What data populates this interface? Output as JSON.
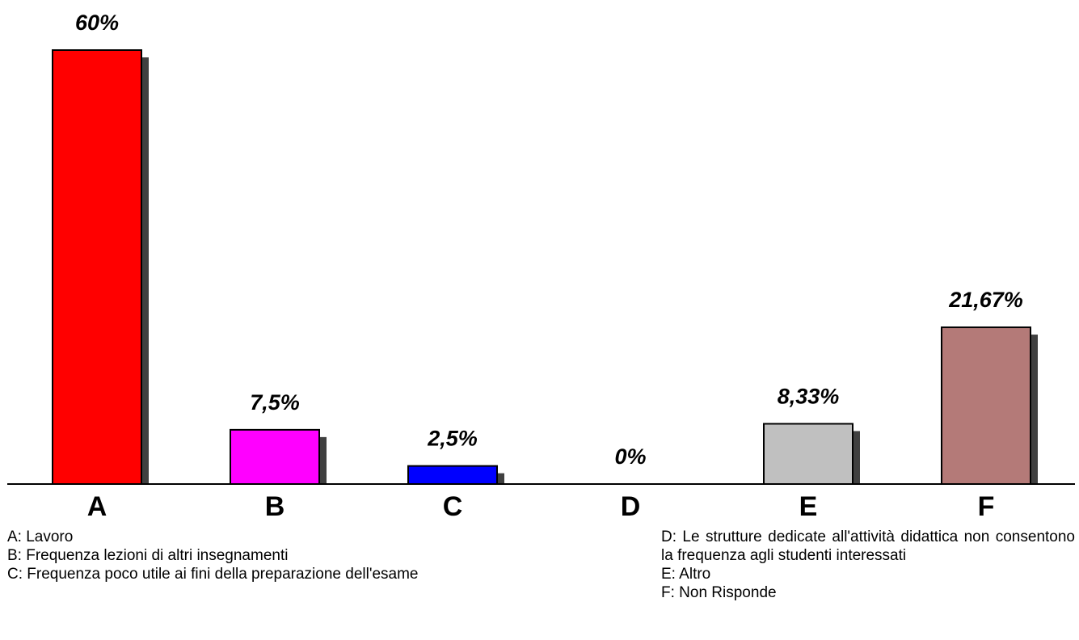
{
  "chart_data": {
    "type": "bar",
    "categories": [
      "A",
      "B",
      "C",
      "D",
      "E",
      "F"
    ],
    "values": [
      60,
      7.5,
      2.5,
      0,
      8.33,
      21.67
    ],
    "value_labels": [
      "60%",
      "7,5%",
      "2,5%",
      "0%",
      "8,33%",
      "21,67%"
    ],
    "colors": [
      "#ff0000",
      "#ff00ff",
      "#0000ff",
      "#c0c0c0",
      "#c0c0c0",
      "#b47a78"
    ],
    "shadow_color": "#404040",
    "ylim": [
      0,
      60
    ],
    "grid": false,
    "title": "",
    "xlabel": "",
    "ylabel": ""
  },
  "legend": {
    "left": [
      "A: Lavoro",
      "B: Frequenza lezioni di altri insegnamenti",
      "C: Frequenza poco utile ai fini della preparazione dell'esame"
    ],
    "right_d": "D: Le strutture dedicate all'attività didattica non consentono la frequenza agli studenti interessati",
    "right_rest": [
      "E: Altro",
      "F: Non Risponde"
    ]
  }
}
